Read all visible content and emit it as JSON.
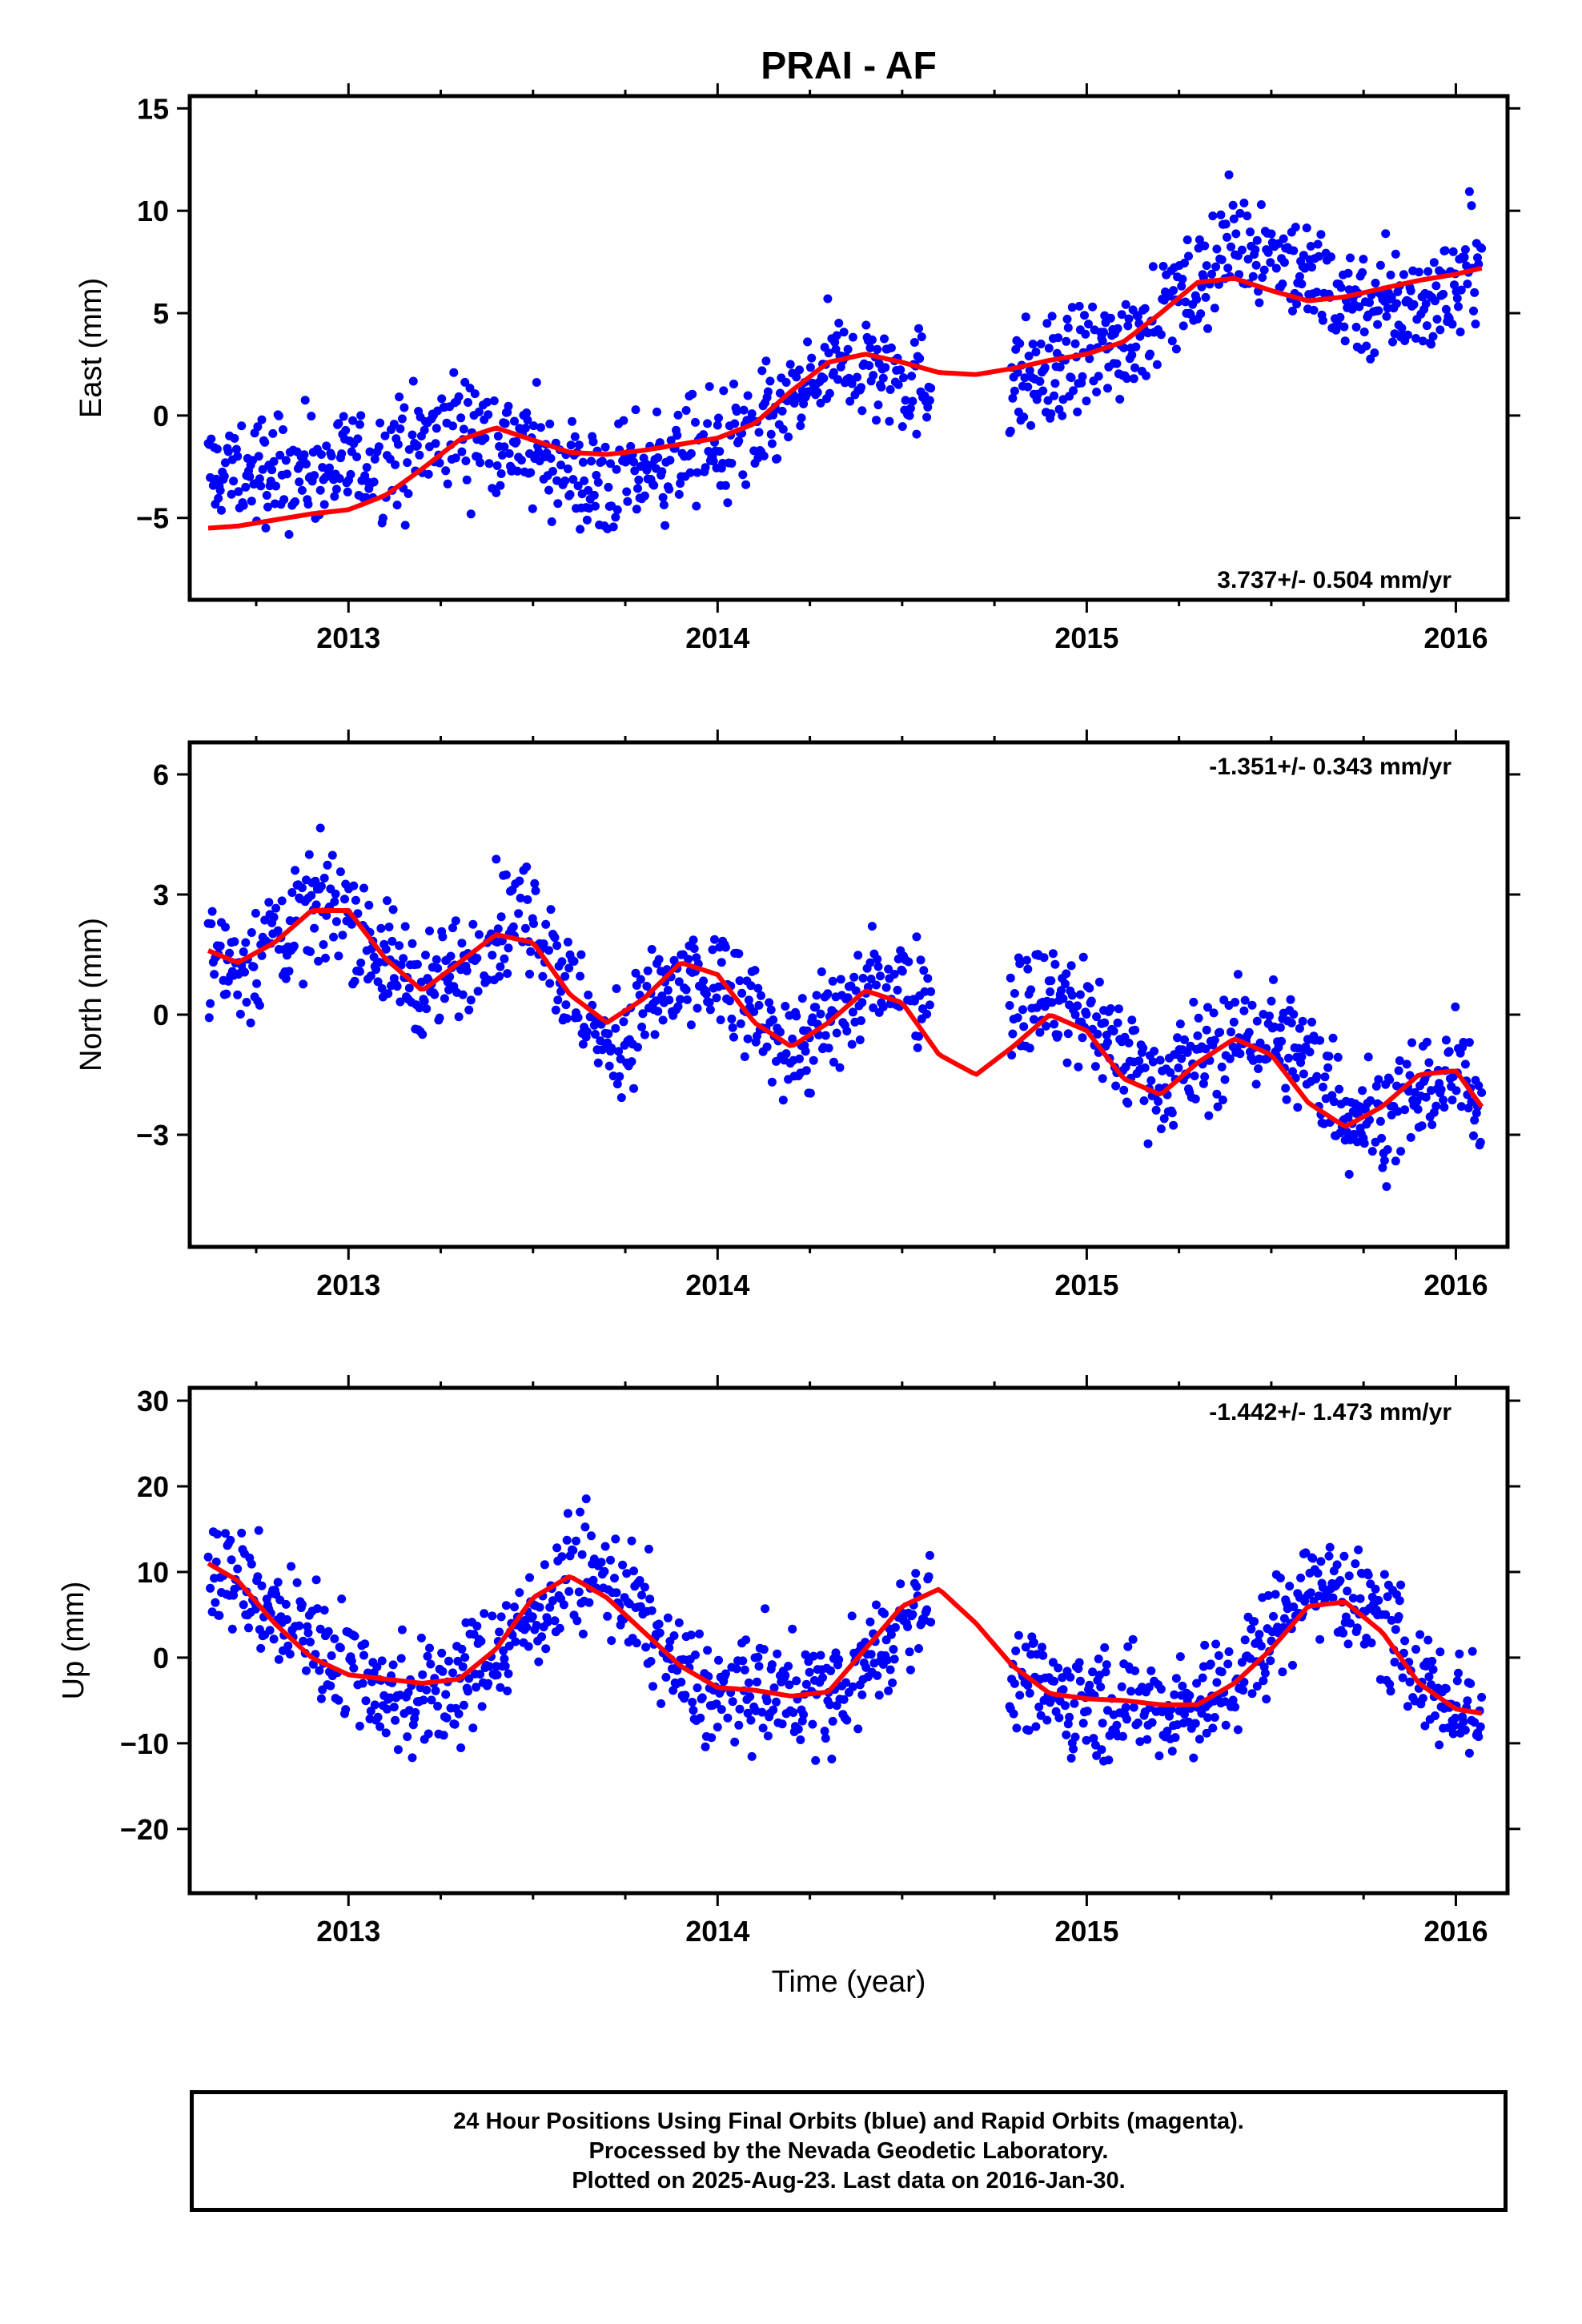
{
  "title": "PRAI - AF",
  "xlabel": "Time (year)",
  "caption": {
    "line1": "24 Hour Positions Using Final Orbits (blue) and Rapid Orbits (magenta).",
    "line2": "Processed by the Nevada Geodetic Laboratory.",
    "line3": "Plotted on 2025-Aug-23. Last data on 2016-Jan-30."
  },
  "colors": {
    "points": "#0000ff",
    "fit": "#ff0000",
    "frame": "#000000"
  },
  "chart_data": [
    {
      "type": "scatter",
      "ylabel": "East (mm)",
      "rate_label": "3.737+/- 0.504 mm/yr",
      "rate_position": "bottom-right",
      "xlim": [
        2012.57,
        2016.14
      ],
      "ylim": [
        -9,
        15.6
      ],
      "yticks": [
        -5,
        0,
        5,
        10,
        15
      ],
      "xticks": [
        2013,
        2014,
        2015,
        2016
      ],
      "grid": false,
      "series": [
        {
          "kind": "daily positions (scatter)",
          "gaps": [
            [
              2014.58,
              2014.79
            ]
          ],
          "x": [
            2012.62,
            2012.7,
            2012.8,
            2012.9,
            2013.0,
            2013.1,
            2013.2,
            2013.3,
            2013.4,
            2013.5,
            2013.6,
            2013.7,
            2013.8,
            2013.9,
            2014.0,
            2014.1,
            2014.2,
            2014.3,
            2014.4,
            2014.5,
            2014.55,
            2014.8,
            2014.9,
            2015.0,
            2015.1,
            2015.2,
            2015.3,
            2015.4,
            2015.5,
            2015.6,
            2015.7,
            2015.8,
            2015.9,
            2016.0,
            2016.07
          ],
          "y": [
            -2.8,
            -2.9,
            -2.7,
            -2.5,
            -2.5,
            -2.2,
            -1.5,
            -0.7,
            -1.0,
            -1.9,
            -2.8,
            -3.6,
            -2.6,
            -2.0,
            -1.5,
            -0.9,
            0.3,
            2.4,
            2.5,
            1.7,
            1.6,
            1.6,
            2.2,
            2.8,
            3.6,
            5.3,
            6.4,
            8.5,
            8.1,
            6.8,
            5.8,
            5.4,
            5.4,
            6.3,
            8.4
          ]
        },
        {
          "kind": "fit",
          "x": [
            2012.62,
            2012.7,
            2012.8,
            2012.9,
            2013.0,
            2013.1,
            2013.2,
            2013.3,
            2013.4,
            2013.5,
            2013.6,
            2013.7,
            2013.8,
            2013.9,
            2014.0,
            2014.1,
            2014.2,
            2014.3,
            2014.4,
            2014.5,
            2014.6,
            2014.7,
            2014.8,
            2014.9,
            2015.0,
            2015.1,
            2015.2,
            2015.3,
            2015.4,
            2015.5,
            2015.6,
            2015.7,
            2015.8,
            2015.9,
            2016.0,
            2016.07
          ],
          "y": [
            -5.5,
            -5.4,
            -5.1,
            -4.8,
            -4.6,
            -3.9,
            -2.6,
            -1.2,
            -0.6,
            -1.2,
            -1.8,
            -1.9,
            -1.7,
            -1.4,
            -1.1,
            -0.4,
            1.2,
            2.6,
            3.0,
            2.6,
            2.1,
            2.0,
            2.3,
            2.7,
            3.0,
            3.6,
            5.0,
            6.5,
            6.7,
            6.1,
            5.6,
            5.8,
            6.2,
            6.6,
            6.9,
            7.2
          ]
        }
      ]
    },
    {
      "type": "scatter",
      "ylabel": "North (mm)",
      "rate_label": "-1.351+/- 0.343 mm/yr",
      "rate_position": "top-right",
      "xlim": [
        2012.57,
        2016.14
      ],
      "ylim": [
        -5.8,
        6.8
      ],
      "yticks": [
        -3,
        0,
        3,
        6
      ],
      "xticks": [
        2013,
        2014,
        2015,
        2016
      ],
      "grid": false,
      "series": [
        {
          "kind": "daily positions (scatter)",
          "gaps": [
            [
              2014.58,
              2014.79
            ]
          ],
          "x": [
            2012.62,
            2012.7,
            2012.8,
            2012.9,
            2013.0,
            2013.1,
            2013.2,
            2013.3,
            2013.4,
            2013.5,
            2013.6,
            2013.7,
            2013.8,
            2013.9,
            2014.0,
            2014.1,
            2014.2,
            2014.3,
            2014.4,
            2014.5,
            2014.55,
            2014.8,
            2014.9,
            2015.0,
            2015.1,
            2015.2,
            2015.3,
            2015.4,
            2015.5,
            2015.6,
            2015.7,
            2015.8,
            2015.9,
            2016.0,
            2016.07
          ],
          "y": [
            1.3,
            1.2,
            1.9,
            2.6,
            2.7,
            1.3,
            0.8,
            1.1,
            2.2,
            2.6,
            0.6,
            -1.0,
            0.1,
            0.7,
            0.8,
            -0.1,
            -0.8,
            -0.4,
            0.6,
            1.1,
            0.6,
            0.4,
            0.4,
            0.0,
            -1.0,
            -1.6,
            -1.1,
            -0.6,
            -0.5,
            -1.2,
            -2.4,
            -2.5,
            -1.9,
            -1.5,
            -2.1
          ]
        },
        {
          "kind": "fit",
          "x": [
            2012.62,
            2012.7,
            2012.8,
            2012.9,
            2013.0,
            2013.1,
            2013.2,
            2013.3,
            2013.4,
            2013.5,
            2013.6,
            2013.7,
            2013.8,
            2013.9,
            2014.0,
            2014.1,
            2014.2,
            2014.3,
            2014.4,
            2014.5,
            2014.6,
            2014.7,
            2014.8,
            2014.9,
            2015.0,
            2015.1,
            2015.2,
            2015.3,
            2015.4,
            2015.5,
            2015.6,
            2015.7,
            2015.8,
            2015.9,
            2016.0,
            2016.07
          ],
          "y": [
            1.6,
            1.3,
            1.8,
            2.6,
            2.6,
            1.4,
            0.6,
            1.3,
            2.0,
            1.8,
            0.5,
            -0.2,
            0.4,
            1.3,
            1.0,
            -0.2,
            -0.8,
            -0.2,
            0.6,
            0.3,
            -1.0,
            -1.5,
            -0.8,
            0.0,
            -0.4,
            -1.6,
            -2.0,
            -1.2,
            -0.6,
            -1.0,
            -2.2,
            -2.8,
            -2.3,
            -1.5,
            -1.4,
            -2.3
          ]
        }
      ]
    },
    {
      "type": "scatter",
      "ylabel": "Up (mm)",
      "rate_label": "-1.442+/- 1.473 mm/yr",
      "rate_position": "top-right",
      "xlim": [
        2012.57,
        2016.14
      ],
      "ylim": [
        -27.5,
        31.5
      ],
      "yticks": [
        -20,
        -10,
        0,
        10,
        20,
        30
      ],
      "xticks": [
        2013,
        2014,
        2015,
        2016
      ],
      "grid": false,
      "series": [
        {
          "kind": "daily positions (scatter)",
          "gaps": [
            [
              2014.58,
              2014.79
            ]
          ],
          "x": [
            2012.62,
            2012.7,
            2012.8,
            2012.9,
            2013.0,
            2013.1,
            2013.2,
            2013.3,
            2013.4,
            2013.5,
            2013.6,
            2013.7,
            2013.8,
            2013.9,
            2014.0,
            2014.1,
            2014.2,
            2014.3,
            2014.4,
            2014.5,
            2014.55,
            2014.8,
            2014.9,
            2015.0,
            2015.1,
            2015.2,
            2015.3,
            2015.4,
            2015.5,
            2015.6,
            2015.7,
            2015.8,
            2015.9,
            2016.0,
            2016.07
          ],
          "y": [
            11,
            9,
            5,
            3,
            -1,
            -4,
            -5,
            -3,
            1,
            5,
            10,
            9,
            5,
            -2,
            -5,
            -4,
            -4,
            -5,
            -1,
            4,
            7,
            -3,
            -4,
            -5,
            -5,
            -6,
            -5,
            -3,
            3,
            9,
            8,
            4,
            -2,
            -5,
            -7
          ]
        },
        {
          "kind": "fit",
          "x": [
            2012.62,
            2012.7,
            2012.8,
            2012.9,
            2013.0,
            2013.1,
            2013.2,
            2013.3,
            2013.4,
            2013.5,
            2013.6,
            2013.7,
            2013.8,
            2013.9,
            2014.0,
            2014.1,
            2014.2,
            2014.3,
            2014.4,
            2014.5,
            2014.6,
            2014.7,
            2014.8,
            2014.9,
            2015.0,
            2015.1,
            2015.2,
            2015.3,
            2015.4,
            2015.5,
            2015.6,
            2015.7,
            2015.8,
            2015.9,
            2016.0,
            2016.07
          ],
          "y": [
            11,
            9,
            4,
            0,
            -2,
            -2.5,
            -3,
            -2.5,
            1,
            7,
            9.5,
            7,
            3,
            -1,
            -3.5,
            -3.8,
            -4.5,
            -4,
            1,
            6,
            8,
            4,
            -1,
            -4.2,
            -4.8,
            -5,
            -5.5,
            -5.5,
            -3,
            1,
            6,
            6.5,
            3,
            -3,
            -6,
            -6.5
          ]
        }
      ]
    }
  ]
}
